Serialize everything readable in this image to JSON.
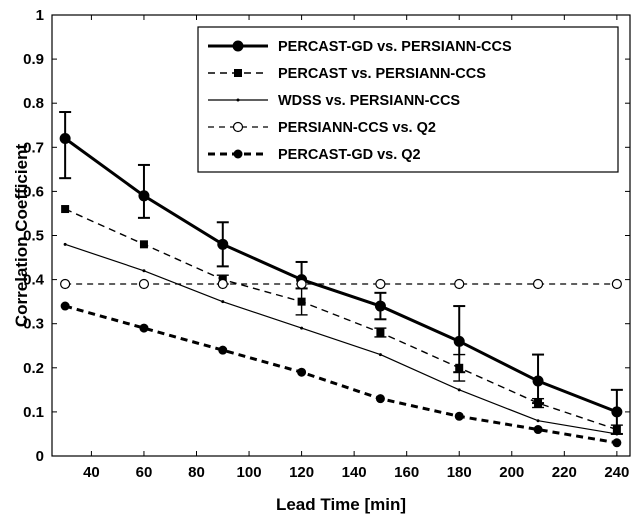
{
  "chart_data": {
    "type": "line",
    "xlabel": "Lead Time [min]",
    "ylabel": "Correlation Coefficient",
    "xlim": [
      25,
      245
    ],
    "ylim": [
      0,
      1
    ],
    "x_ticks": [
      "40",
      "60",
      "80",
      "100",
      "120",
      "140",
      "160",
      "180",
      "200",
      "220",
      "240"
    ],
    "y_ticks": [
      "0",
      "0.1",
      "0.2",
      "0.3",
      "0.4",
      "0.5",
      "0.6",
      "0.7",
      "0.8",
      "0.9",
      "1"
    ],
    "grid": false,
    "legend_position": "top-right",
    "x": [
      30,
      60,
      90,
      120,
      150,
      180,
      210,
      240
    ],
    "series": [
      {
        "name": "PERCAST-GD vs. PERSIANN-CCS",
        "values": [
          0.72,
          0.59,
          0.48,
          0.4,
          0.34,
          0.26,
          0.17,
          0.1
        ],
        "error_low": [
          0.63,
          0.54,
          0.43,
          0.38,
          0.31,
          0.19,
          0.12,
          0.05
        ],
        "error_high": [
          0.78,
          0.66,
          0.53,
          0.44,
          0.37,
          0.34,
          0.23,
          0.15
        ]
      },
      {
        "name": "PERCAST vs. PERSIANN-CCS",
        "values": [
          0.56,
          0.48,
          0.4,
          0.35,
          0.28,
          0.2,
          0.12,
          0.06
        ],
        "error_low": [
          null,
          null,
          0.39,
          0.32,
          0.27,
          0.17,
          0.11,
          0.05
        ],
        "error_high": [
          null,
          null,
          0.41,
          0.38,
          0.29,
          0.23,
          0.13,
          0.07
        ]
      },
      {
        "name": "WDSS vs. PERSIANN-CCS",
        "values": [
          0.48,
          0.42,
          0.35,
          0.29,
          0.23,
          0.15,
          0.08,
          0.05
        ]
      },
      {
        "name": "PERSIANN-CCS vs. Q2",
        "values": [
          0.39,
          0.39,
          0.39,
          0.39,
          0.39,
          0.39,
          0.39,
          0.39
        ]
      },
      {
        "name": "PERCAST-GD vs. Q2",
        "values": [
          0.34,
          0.29,
          0.24,
          0.19,
          0.13,
          0.09,
          0.06,
          0.03
        ]
      }
    ],
    "colors": {
      "line": "#000000",
      "background": "#ffffff"
    }
  }
}
